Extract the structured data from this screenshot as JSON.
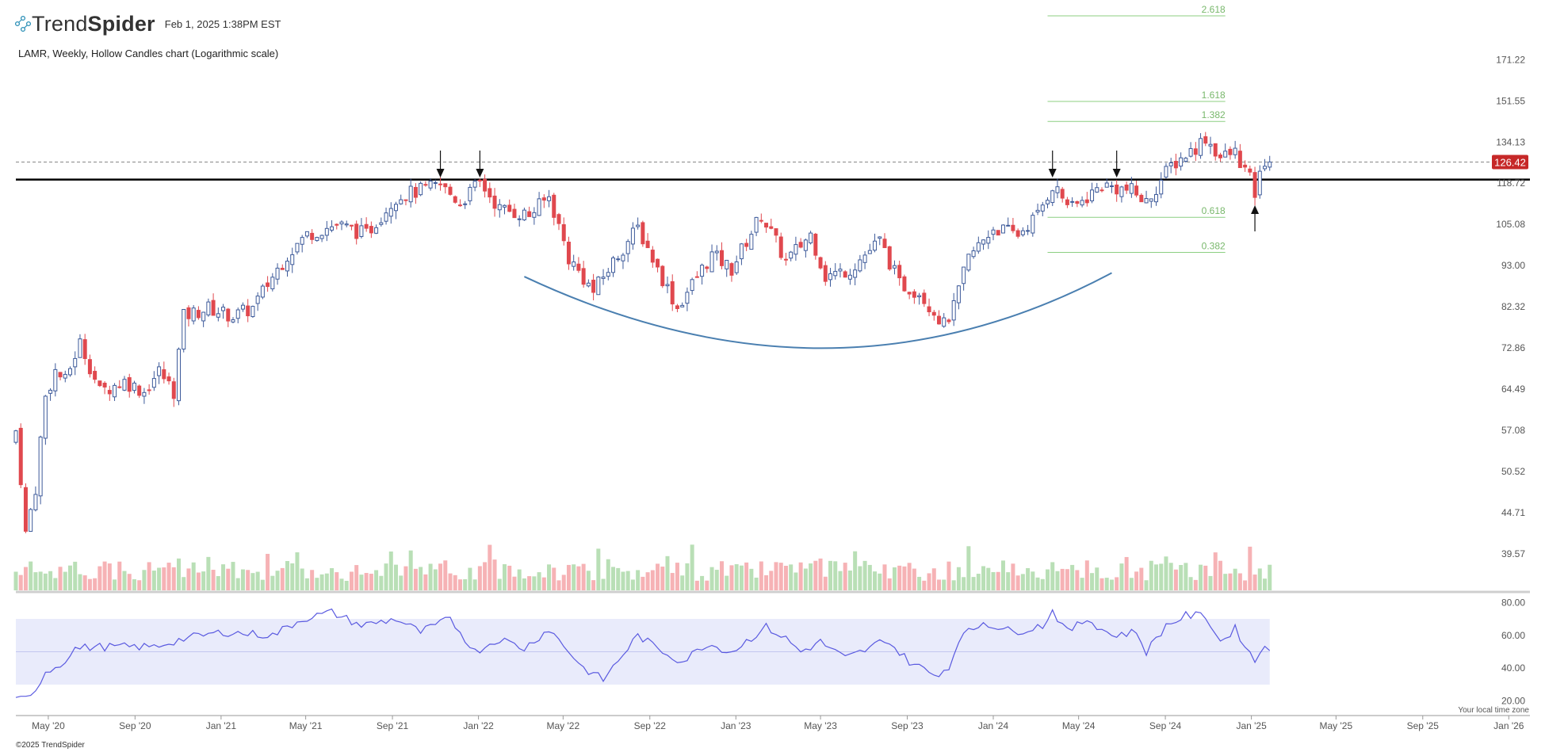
{
  "brand": {
    "name_light": "Trend",
    "name_bold": "Spider"
  },
  "header": {
    "timestamp": "Feb 1, 2025 1:38PM EST"
  },
  "subtitle": "LAMR, Weekly, Hollow Candles chart (Logarithmic scale)",
  "copyright": "©2025 TrendSpider",
  "tz_note": "Your local time zone",
  "colors": {
    "up": "#3d5a9a",
    "down": "#e0484e",
    "vol_up": "#b9dfb6",
    "vol_down": "#f6b2b5",
    "rsi_line": "#5a5ae0",
    "rsi_band": "#e9ebfb",
    "fib": "#8ccf82",
    "trend_arc": "#4a7fb0",
    "price_badge": "#c62828",
    "resistance": "#000000"
  },
  "chart_data": {
    "type": "candlestick",
    "symbol": "LAMR",
    "interval": "Weekly",
    "style": "Hollow Candles",
    "scale": "log",
    "x_ticks": [
      "May '20",
      "Sep '20",
      "Jan '21",
      "May '21",
      "Sep '21",
      "Jan '22",
      "May '22",
      "Sep '22",
      "Jan '23",
      "May '23",
      "Sep '23",
      "Jan '24",
      "May '24",
      "Sep '24",
      "Jan '25",
      "May '25",
      "Sep '25",
      "Jan '26"
    ],
    "x_domain": [
      "2020-03-16",
      "2026-01-31"
    ],
    "y_ticks": [
      "171.22",
      "151.55",
      "134.13",
      "118.72",
      "105.08",
      "93.00",
      "82.32",
      "72.86",
      "64.49",
      "57.08",
      "50.52",
      "44.71",
      "39.57"
    ],
    "y_range": [
      35.5,
      195
    ],
    "last_price": "126.42",
    "resistance_level": 120.0,
    "fib_levels": [
      {
        "label": "2.618",
        "value": 195.0
      },
      {
        "label": "1.618",
        "value": 151.3
      },
      {
        "label": "1.382",
        "value": 142.6
      },
      {
        "label": "0.618",
        "value": 107.3
      },
      {
        "label": "0.382",
        "value": 96.7
      }
    ],
    "fib_x_range": [
      "2024-03-18",
      "2024-11-25"
    ],
    "rsi": {
      "ticks": [
        "80.00",
        "60.00",
        "40.00",
        "20.00"
      ],
      "range": [
        15,
        85
      ],
      "overbought": 70,
      "midline": 50,
      "oversold": 30,
      "key_points": [
        {
          "date": "2020-03-16",
          "v": 20
        },
        {
          "date": "2020-04-06",
          "v": 22
        },
        {
          "date": "2020-04-27",
          "v": 38
        },
        {
          "date": "2020-05-18",
          "v": 42
        },
        {
          "date": "2020-06-08",
          "v": 52
        },
        {
          "date": "2020-07-06",
          "v": 53
        },
        {
          "date": "2020-09-28",
          "v": 53
        },
        {
          "date": "2020-11-09",
          "v": 58
        },
        {
          "date": "2021-01-04",
          "v": 62
        },
        {
          "date": "2021-03-15",
          "v": 60
        },
        {
          "date": "2021-04-26",
          "v": 70
        },
        {
          "date": "2021-06-07",
          "v": 74
        },
        {
          "date": "2021-07-19",
          "v": 66
        },
        {
          "date": "2021-09-06",
          "v": 70
        },
        {
          "date": "2021-10-11",
          "v": 62
        },
        {
          "date": "2021-11-22",
          "v": 70
        },
        {
          "date": "2021-12-27",
          "v": 50
        },
        {
          "date": "2022-01-31",
          "v": 58
        },
        {
          "date": "2022-03-07",
          "v": 52
        },
        {
          "date": "2022-04-11",
          "v": 64
        },
        {
          "date": "2022-05-30",
          "v": 40
        },
        {
          "date": "2022-06-27",
          "v": 33
        },
        {
          "date": "2022-08-15",
          "v": 60
        },
        {
          "date": "2022-09-12",
          "v": 52
        },
        {
          "date": "2022-10-17",
          "v": 44
        },
        {
          "date": "2022-11-21",
          "v": 55
        },
        {
          "date": "2022-12-26",
          "v": 50
        },
        {
          "date": "2023-02-13",
          "v": 65
        },
        {
          "date": "2023-03-13",
          "v": 58
        },
        {
          "date": "2023-04-03",
          "v": 50
        },
        {
          "date": "2023-05-01",
          "v": 56
        },
        {
          "date": "2023-06-05",
          "v": 46
        },
        {
          "date": "2023-07-10",
          "v": 52
        },
        {
          "date": "2023-07-31",
          "v": 58
        },
        {
          "date": "2023-09-04",
          "v": 44
        },
        {
          "date": "2023-10-09",
          "v": 36
        },
        {
          "date": "2023-10-30",
          "v": 40
        },
        {
          "date": "2023-11-13",
          "v": 58
        },
        {
          "date": "2023-12-18",
          "v": 68
        },
        {
          "date": "2024-01-29",
          "v": 62
        },
        {
          "date": "2024-03-11",
          "v": 66
        },
        {
          "date": "2024-03-25",
          "v": 75
        },
        {
          "date": "2024-04-15",
          "v": 62
        },
        {
          "date": "2024-05-13",
          "v": 70
        },
        {
          "date": "2024-06-17",
          "v": 60
        },
        {
          "date": "2024-07-22",
          "v": 62
        },
        {
          "date": "2024-08-05",
          "v": 50
        },
        {
          "date": "2024-09-02",
          "v": 66
        },
        {
          "date": "2024-09-30",
          "v": 72
        },
        {
          "date": "2024-10-28",
          "v": 72
        },
        {
          "date": "2024-11-18",
          "v": 56
        },
        {
          "date": "2024-12-09",
          "v": 64
        },
        {
          "date": "2024-12-23",
          "v": 54
        },
        {
          "date": "2025-01-06",
          "v": 44
        },
        {
          "date": "2025-01-20",
          "v": 55
        },
        {
          "date": "2025-01-27",
          "v": 53
        }
      ]
    },
    "arrows": [
      {
        "date": "2021-11-08",
        "direction": "down"
      },
      {
        "date": "2022-01-03",
        "direction": "down"
      },
      {
        "date": "2024-03-25",
        "direction": "down"
      },
      {
        "date": "2024-06-24",
        "direction": "down"
      },
      {
        "date": "2025-01-06",
        "direction": "up"
      }
    ],
    "rounded_bottom": {
      "start": {
        "date": "2022-03-07",
        "price": 90.0
      },
      "trough": {
        "date": "2023-05-08",
        "price": 72.8
      },
      "end": {
        "date": "2024-06-17",
        "price": 91.0
      }
    },
    "price_path": [
      {
        "date": "2020-03-16",
        "close": 57
      },
      {
        "date": "2020-03-30",
        "close": 42
      },
      {
        "date": "2020-04-13",
        "close": 48
      },
      {
        "date": "2020-04-27",
        "close": 63
      },
      {
        "date": "2020-05-11",
        "close": 68
      },
      {
        "date": "2020-05-25",
        "close": 66
      },
      {
        "date": "2020-06-15",
        "close": 74
      },
      {
        "date": "2020-07-13",
        "close": 64
      },
      {
        "date": "2020-08-17",
        "close": 66
      },
      {
        "date": "2020-09-14",
        "close": 64
      },
      {
        "date": "2020-10-05",
        "close": 68
      },
      {
        "date": "2020-10-26",
        "close": 64
      },
      {
        "date": "2020-11-09",
        "close": 80
      },
      {
        "date": "2020-12-14",
        "close": 82
      },
      {
        "date": "2021-01-18",
        "close": 80
      },
      {
        "date": "2021-02-15",
        "close": 82
      },
      {
        "date": "2021-03-15",
        "close": 90
      },
      {
        "date": "2021-04-05",
        "close": 96
      },
      {
        "date": "2021-05-03",
        "close": 102
      },
      {
        "date": "2021-06-14",
        "close": 105
      },
      {
        "date": "2021-07-26",
        "close": 102
      },
      {
        "date": "2021-09-06",
        "close": 114
      },
      {
        "date": "2021-11-08",
        "close": 118
      },
      {
        "date": "2021-12-06",
        "close": 112
      },
      {
        "date": "2022-01-03",
        "close": 119
      },
      {
        "date": "2022-01-31",
        "close": 110
      },
      {
        "date": "2022-03-14",
        "close": 108
      },
      {
        "date": "2022-04-11",
        "close": 114
      },
      {
        "date": "2022-05-09",
        "close": 95
      },
      {
        "date": "2022-06-13",
        "close": 86
      },
      {
        "date": "2022-08-15",
        "close": 104
      },
      {
        "date": "2022-09-12",
        "close": 92
      },
      {
        "date": "2022-10-10",
        "close": 82
      },
      {
        "date": "2022-11-28",
        "close": 96
      },
      {
        "date": "2022-12-26",
        "close": 92
      },
      {
        "date": "2023-02-06",
        "close": 108
      },
      {
        "date": "2023-03-13",
        "close": 94
      },
      {
        "date": "2023-04-17",
        "close": 102
      },
      {
        "date": "2023-05-08",
        "close": 90
      },
      {
        "date": "2023-06-12",
        "close": 92
      },
      {
        "date": "2023-07-24",
        "close": 100
      },
      {
        "date": "2023-08-21",
        "close": 88
      },
      {
        "date": "2023-09-18",
        "close": 86
      },
      {
        "date": "2023-10-23",
        "close": 78
      },
      {
        "date": "2023-11-06",
        "close": 82
      },
      {
        "date": "2023-11-27",
        "close": 95
      },
      {
        "date": "2024-01-01",
        "close": 104
      },
      {
        "date": "2024-02-05",
        "close": 102
      },
      {
        "date": "2024-03-04",
        "close": 108
      },
      {
        "date": "2024-03-25",
        "close": 118
      },
      {
        "date": "2024-04-22",
        "close": 110
      },
      {
        "date": "2024-06-03",
        "close": 118
      },
      {
        "date": "2024-07-15",
        "close": 116
      },
      {
        "date": "2024-08-05",
        "close": 112
      },
      {
        "date": "2024-09-09",
        "close": 125
      },
      {
        "date": "2024-10-14",
        "close": 132
      },
      {
        "date": "2024-10-28",
        "close": 136
      },
      {
        "date": "2024-11-18",
        "close": 128
      },
      {
        "date": "2024-12-09",
        "close": 130
      },
      {
        "date": "2024-12-30",
        "close": 120
      },
      {
        "date": "2025-01-06",
        "close": 115
      },
      {
        "date": "2025-01-20",
        "close": 127
      },
      {
        "date": "2025-01-27",
        "close": 126.42
      }
    ]
  }
}
